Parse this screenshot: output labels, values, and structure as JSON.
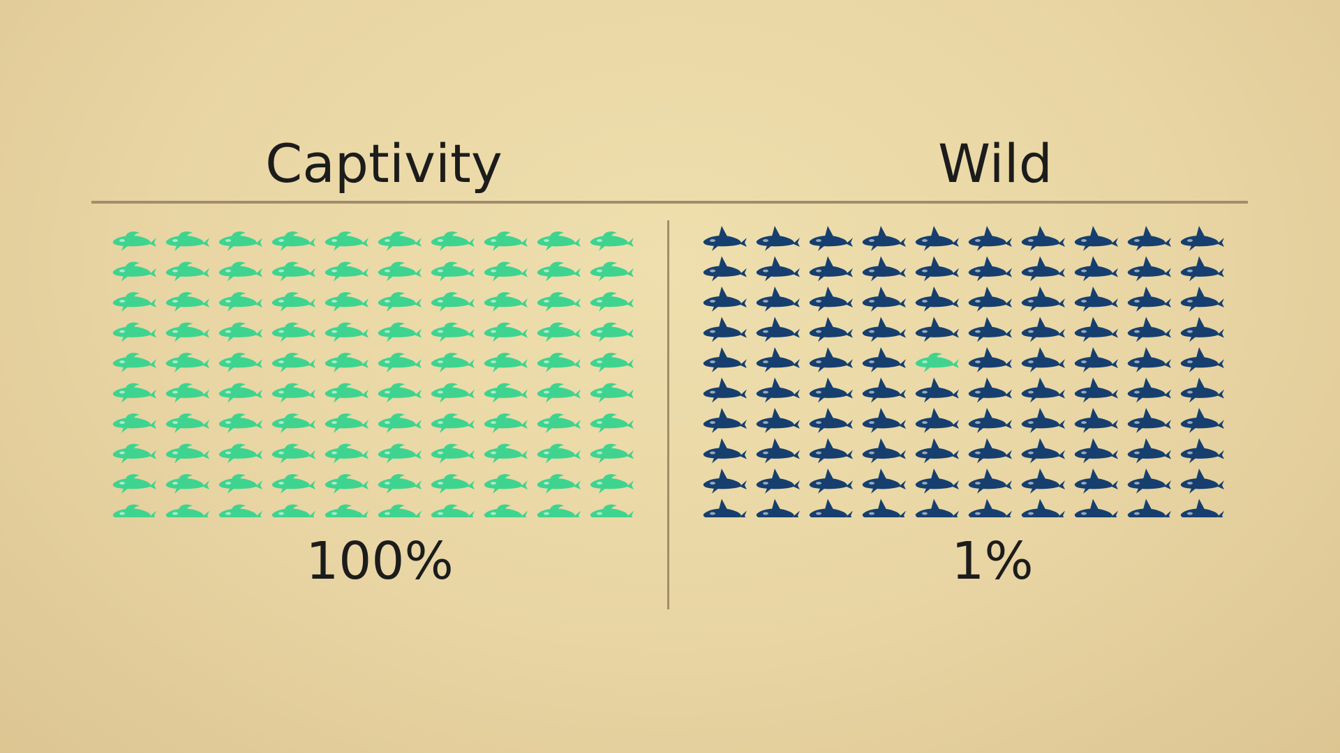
{
  "chart_data": {
    "type": "pictogram",
    "grid": {
      "rows": 10,
      "columns": 10
    },
    "panels": [
      {
        "title": "Captivity",
        "value_label": "100%",
        "percent_highlighted": 100,
        "highlighted_cells": "all",
        "icon": "collapsed-dorsal-fin-orca-icon"
      },
      {
        "title": "Wild",
        "value_label": "1%",
        "percent_highlighted": 1,
        "highlighted_cells": [
          {
            "row": 5,
            "column": 5
          }
        ],
        "icon": "upright-dorsal-fin-orca-icon"
      }
    ],
    "colors": {
      "highlighted": "#3ed48f",
      "normal": "#163f6f",
      "background": "#e8d5a3",
      "rule": "#a08d6b"
    }
  }
}
